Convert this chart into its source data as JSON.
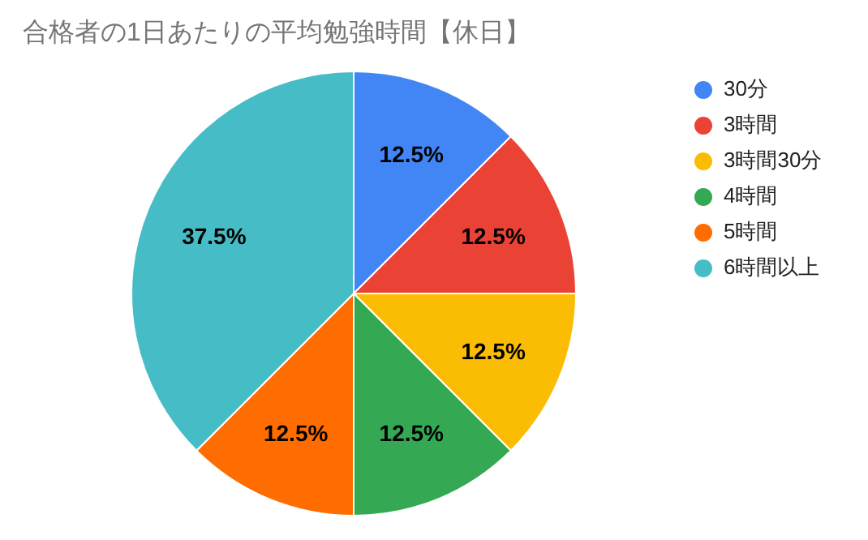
{
  "chart_data": {
    "type": "pie",
    "title": "合格者の1日あたりの平均勉強時間【休日】",
    "categories": [
      "30分",
      "3時間",
      "3時間30分",
      "4時間",
      "5時間",
      "6時間以上"
    ],
    "values": [
      12.5,
      12.5,
      12.5,
      12.5,
      12.5,
      37.5
    ],
    "value_labels": [
      "12.5%",
      "12.5%",
      "12.5%",
      "12.5%",
      "12.5%",
      "37.5%"
    ],
    "colors": [
      "#4285f4",
      "#ea4335",
      "#fbbc04",
      "#34a853",
      "#ff6d01",
      "#46bdc6"
    ],
    "legend": "right"
  }
}
